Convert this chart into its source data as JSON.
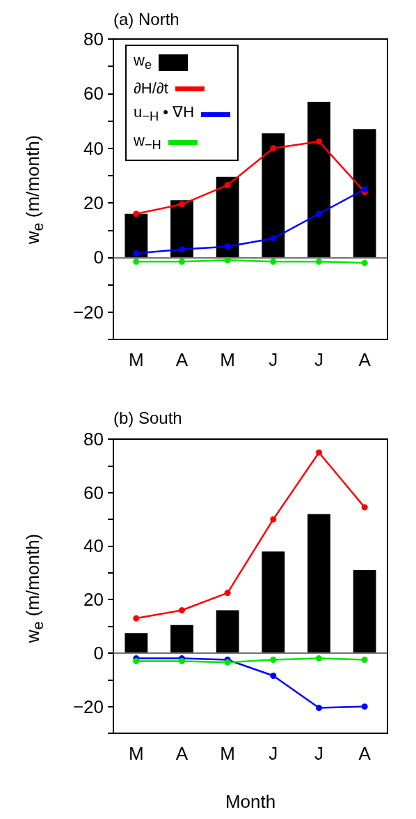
{
  "chart_data": [
    {
      "type": "bar",
      "title": "(a) North",
      "ylabel": "w$_{e}$ (m/month)",
      "categories": [
        "M",
        "A",
        "M",
        "J",
        "J",
        "A"
      ],
      "series": [
        {
          "name": "w$_{e}$",
          "color": "#000000",
          "values": [
            16,
            21,
            29.5,
            45.5,
            57,
            47
          ]
        },
        {
          "name": "∂H/∂t",
          "type": "line",
          "color": "#ff0000",
          "values": [
            16,
            19.5,
            26.5,
            40,
            42.5,
            24
          ]
        },
        {
          "name": "u$_{−H}$ • ∇H",
          "type": "line",
          "color": "#0000ff",
          "values": [
            1.5,
            3,
            4,
            7,
            16,
            25
          ]
        },
        {
          "name": "w$_{−H}$",
          "type": "line",
          "color": "#00e600",
          "values": [
            -1.5,
            -1.5,
            -1,
            -1.5,
            -1.5,
            -2
          ]
        }
      ],
      "ylim": [
        -30,
        80
      ],
      "yticks": [
        {
          "value": -30,
          "label": null
        },
        -20,
        {
          "value": -10,
          "label": null
        },
        0,
        {
          "value": 10,
          "label": null
        },
        20,
        {
          "value": 30,
          "label": null
        },
        40,
        {
          "value": 50,
          "label": null
        },
        60,
        {
          "value": 70,
          "label": null
        },
        80
      ],
      "ref_lines": [
        {
          "axis": "y",
          "value": 0,
          "color": "#999999"
        }
      ],
      "grid": false,
      "legend": "top left",
      "marker": "circle",
      "line_style": "solid"
    },
    {
      "type": "bar",
      "title": "(b) South",
      "xlabel": "Month",
      "ylabel": "w$_{e}$ (m/month)",
      "categories": [
        "M",
        "A",
        "M",
        "J",
        "J",
        "A"
      ],
      "series": [
        {
          "color": "#000000",
          "values": [
            7.5,
            10.5,
            16,
            38,
            52,
            31
          ]
        },
        {
          "type": "line",
          "color": "#ff0000",
          "values": [
            13,
            16,
            22.5,
            50,
            75,
            54.5
          ]
        },
        {
          "type": "line",
          "color": "#0000ff",
          "values": [
            -2,
            -2,
            -2.5,
            -8.5,
            -20.5,
            -20
          ]
        },
        {
          "type": "line",
          "color": "#00e600",
          "values": [
            -3,
            -3,
            -3.5,
            -2.5,
            -2,
            -2.5
          ]
        }
      ],
      "ylim": [
        -30,
        80
      ],
      "yticks": [
        {
          "value": -30,
          "label": null
        },
        -20,
        {
          "value": -10,
          "label": null
        },
        0,
        {
          "value": 10,
          "label": null
        },
        20,
        {
          "value": 30,
          "label": null
        },
        40,
        {
          "value": 50,
          "label": null
        },
        60,
        {
          "value": 70,
          "label": null
        },
        80
      ],
      "ref_lines": [
        {
          "axis": "y",
          "value": 0,
          "color": "#999999"
        }
      ],
      "grid": false,
      "legend": false,
      "marker": "circle",
      "line_style": "solid"
    }
  ]
}
